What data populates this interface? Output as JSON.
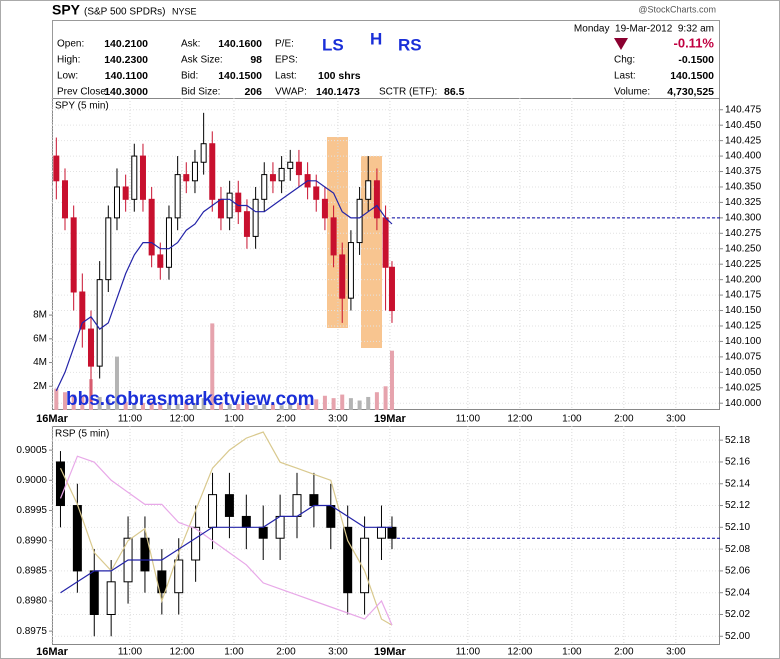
{
  "header": {
    "symbol": "SPY",
    "description": "(S&P 500 SPDRs)",
    "exchange": "NYSE",
    "source": "@StockCharts.com",
    "datetime": "Monday  19-Mar-2012  9:32 am",
    "change_percent": "-0.11%",
    "annotations": [
      "LS",
      "H",
      "RS"
    ],
    "stats": [
      {
        "label": "Open:",
        "value": "140.2100"
      },
      {
        "label": "High:",
        "value": "140.2300"
      },
      {
        "label": "Low:",
        "value": "140.1100"
      },
      {
        "label": "Prev Close:",
        "value": "140.3000"
      },
      {
        "label": "Ask:",
        "value": "140.1600"
      },
      {
        "label": "Ask Size:",
        "value": "98"
      },
      {
        "label": "Bid:",
        "value": "140.1500"
      },
      {
        "label": "Bid Size:",
        "value": "206"
      },
      {
        "label": "P/E:"
      },
      {
        "label": "EPS:"
      },
      {
        "label": "Last:",
        "value": "100 shrs"
      },
      {
        "label": "VWAP:",
        "value": "140.1473"
      },
      {
        "label": "SCTR (ETF):",
        "value": "86.5"
      },
      {
        "label": "Chg:",
        "value": "-0.1500"
      },
      {
        "label": "Last:",
        "value": "140.1500"
      },
      {
        "label": "Volume:",
        "value": "4,730,525"
      }
    ]
  },
  "chart_data": [
    {
      "type": "candlestick",
      "title": "SPY (5 min)",
      "grid": true,
      "up_color": "#ffffff",
      "down_color": "#c8102e",
      "outline_color": "#000000",
      "annotations": [
        "bbs.cobrasmarketview.com"
      ],
      "reference_line": 140.3,
      "reference_color": "#0000a0",
      "xlim": [
        0,
        12.85
      ],
      "xticks": [
        {
          "value": 0,
          "label": "16Mar"
        },
        {
          "value": 1.5,
          "label": "11:00"
        },
        {
          "value": 2.5,
          "label": "12:00"
        },
        {
          "value": 3.5,
          "label": "1:00"
        },
        {
          "value": 4.5,
          "label": "2:00"
        },
        {
          "value": 5.5,
          "label": "3:00"
        },
        {
          "value": 6.5,
          "label": "19Mar"
        },
        {
          "value": 8,
          "label": "11:00"
        },
        {
          "value": 9,
          "label": "12:00"
        },
        {
          "value": 10,
          "label": "1:00"
        },
        {
          "value": 11,
          "label": "2:00"
        },
        {
          "value": 12,
          "label": "3:00"
        }
      ],
      "ylim": [
        139.989,
        140.494
      ],
      "yticks": [
        {
          "value": 140,
          "label": "140.000"
        },
        140.025,
        {
          "value": 140.05,
          "label": "140.050"
        },
        140.075,
        {
          "value": 140.1,
          "label": "140.100"
        },
        140.125,
        {
          "value": 140.15,
          "label": "140.150"
        },
        140.175,
        {
          "value": 140.2,
          "label": "140.200"
        },
        140.225,
        {
          "value": 140.25,
          "label": "140.250"
        },
        140.275,
        {
          "value": 140.3,
          "label": "140.300"
        },
        140.325,
        {
          "value": 140.35,
          "label": "140.350"
        },
        140.375,
        {
          "value": 140.4,
          "label": "140.400"
        },
        140.425,
        {
          "value": 140.45,
          "label": "140.450"
        },
        140.475
      ],
      "y2lim": [
        0,
        26300000
      ],
      "y2ticks": [
        {
          "value": 2000000,
          "label": "2M"
        },
        {
          "value": 4000000,
          "label": "4M"
        },
        {
          "value": 6000000,
          "label": "6M"
        },
        {
          "value": 8000000,
          "label": "8M"
        }
      ],
      "x": [
        0.083,
        0.25,
        0.417,
        0.583,
        0.75,
        0.917,
        1.083,
        1.25,
        1.417,
        1.583,
        1.75,
        1.917,
        2.083,
        2.25,
        2.417,
        2.583,
        2.75,
        2.917,
        3.083,
        3.25,
        3.417,
        3.583,
        3.75,
        3.917,
        4.083,
        4.25,
        4.417,
        4.583,
        4.75,
        4.917,
        5.083,
        5.25,
        5.417,
        5.583,
        5.75,
        5.917,
        6.083,
        6.25,
        6.417,
        6.54
      ],
      "open": [
        140.4,
        140.36,
        140.3,
        140.18,
        140.12,
        140.06,
        140.2,
        140.3,
        140.35,
        140.33,
        140.4,
        140.33,
        140.24,
        140.22,
        140.3,
        140.37,
        140.36,
        140.39,
        140.42,
        140.33,
        140.3,
        140.34,
        140.31,
        140.27,
        140.33,
        140.37,
        140.36,
        140.38,
        140.39,
        140.37,
        140.35,
        140.33,
        140.3,
        140.24,
        140.17,
        140.26,
        140.33,
        140.36,
        140.3,
        140.22
      ],
      "high": [
        140.43,
        140.38,
        140.32,
        140.21,
        140.15,
        140.23,
        140.32,
        140.38,
        140.37,
        140.42,
        140.42,
        140.35,
        140.26,
        140.32,
        140.4,
        140.39,
        140.41,
        140.47,
        140.44,
        140.35,
        140.36,
        140.36,
        140.33,
        140.35,
        140.39,
        140.39,
        140.4,
        140.41,
        140.41,
        140.39,
        140.37,
        140.35,
        140.32,
        140.26,
        140.28,
        140.35,
        140.4,
        140.38,
        140.32,
        140.23
      ],
      "low": [
        140.33,
        140.28,
        140.15,
        140.09,
        140.0,
        140.04,
        140.18,
        140.28,
        140.31,
        140.31,
        140.31,
        140.22,
        140.2,
        140.2,
        140.28,
        140.34,
        140.34,
        140.37,
        140.31,
        140.28,
        140.28,
        140.29,
        140.25,
        140.25,
        140.31,
        140.34,
        140.34,
        140.36,
        140.35,
        140.33,
        140.31,
        140.28,
        140.22,
        140.13,
        140.15,
        140.24,
        140.31,
        140.28,
        140.15,
        140.13
      ],
      "close": [
        140.36,
        140.3,
        140.18,
        140.12,
        140.06,
        140.2,
        140.3,
        140.35,
        140.33,
        140.4,
        140.33,
        140.24,
        140.22,
        140.3,
        140.37,
        140.36,
        140.39,
        140.42,
        140.33,
        140.3,
        140.34,
        140.31,
        140.27,
        140.33,
        140.37,
        140.36,
        140.38,
        140.39,
        140.37,
        140.35,
        140.33,
        140.3,
        140.24,
        140.17,
        140.26,
        140.33,
        140.36,
        140.3,
        140.22,
        140.15
      ],
      "series": [
        {
          "type": "line",
          "color": "#2323a8",
          "values": [
            140.02,
            140.05,
            140.09,
            140.13,
            140.14,
            140.12,
            140.13,
            140.17,
            140.21,
            140.24,
            140.26,
            140.26,
            140.25,
            140.25,
            140.26,
            140.28,
            140.29,
            140.31,
            140.32,
            140.33,
            140.33,
            140.32,
            140.32,
            140.31,
            140.31,
            140.32,
            140.33,
            140.34,
            140.35,
            140.36,
            140.36,
            140.35,
            140.34,
            140.31,
            140.3,
            140.3,
            140.31,
            140.32,
            140.3,
            140.29
          ]
        },
        {
          "type": "bar",
          "axis": "y2",
          "up_color": "#b4b4b4",
          "down_color": "#e6a3ad",
          "values": [
            1800000,
            1500000,
            1300000,
            1200000,
            2600000,
            1100000,
            900000,
            4500000,
            700000,
            600000,
            600000,
            700000,
            500000,
            600000,
            500000,
            700000,
            600000,
            1000000,
            7300000,
            600000,
            500000,
            500000,
            600000,
            400000,
            500000,
            500000,
            400000,
            500000,
            600000,
            500000,
            900000,
            1200000,
            1000000,
            1300000,
            1000000,
            800000,
            1100000,
            1500000,
            2000000,
            5000000
          ]
        }
      ]
    },
    {
      "type": "candlestick",
      "title": "RSP (5 min)",
      "grid": true,
      "up_color": "#ffffff",
      "down_color": "#000000",
      "outline_color": "#000000",
      "reference_line": 52.09,
      "reference_color": "#0000a0",
      "xlim": [
        0,
        12.85
      ],
      "xticks": [
        {
          "value": 0,
          "label": "16Mar"
        },
        {
          "value": 1.5,
          "label": "11:00"
        },
        {
          "value": 2.5,
          "label": "12:00"
        },
        {
          "value": 3.5,
          "label": "1:00"
        },
        {
          "value": 4.5,
          "label": "2:00"
        },
        {
          "value": 5.5,
          "label": "3:00"
        },
        {
          "value": 6.5,
          "label": "19Mar"
        },
        {
          "value": 8,
          "label": "11:00"
        },
        {
          "value": 9,
          "label": "12:00"
        },
        {
          "value": 10,
          "label": "1:00"
        },
        {
          "value": 11,
          "label": "2:00"
        },
        {
          "value": 12,
          "label": "3:00"
        }
      ],
      "ylim": [
        51.992,
        52.193
      ],
      "yticks": [
        {
          "value": 52,
          "label": "52.00"
        },
        52.02,
        52.04,
        52.06,
        52.08,
        {
          "value": 52.1,
          "label": "52.10"
        },
        52.12,
        52.14,
        52.16,
        52.18
      ],
      "y2lim": [
        0.89727,
        0.9009
      ],
      "y2ticks": [
        0.8975,
        {
          "value": 0.898,
          "label": "0.8980"
        },
        0.8985,
        {
          "value": 0.899,
          "label": "0.8990"
        },
        0.8995,
        {
          "value": 0.9,
          "label": "0.9000"
        },
        0.9005
      ],
      "x": [
        0.163,
        0.488,
        0.813,
        1.138,
        1.463,
        1.788,
        2.113,
        2.438,
        2.763,
        3.088,
        3.413,
        3.738,
        4.063,
        4.388,
        4.713,
        5.038,
        5.363,
        5.688,
        6.013,
        6.338,
        6.54
      ],
      "open": [
        52.16,
        52.12,
        52.06,
        52.02,
        52.05,
        52.09,
        52.06,
        52.04,
        52.07,
        52.1,
        52.13,
        52.11,
        52.1,
        52.09,
        52.11,
        52.13,
        52.12,
        52.1,
        52.04,
        52.09,
        52.1
      ],
      "high": [
        52.17,
        52.14,
        52.08,
        52.07,
        52.11,
        52.11,
        52.08,
        52.09,
        52.12,
        52.15,
        52.15,
        52.13,
        52.12,
        52.13,
        52.15,
        52.15,
        52.14,
        52.12,
        52.11,
        52.12,
        52.11
      ],
      "low": [
        52.1,
        52.04,
        52.0,
        52.0,
        52.03,
        52.04,
        52.02,
        52.02,
        52.05,
        52.08,
        52.09,
        52.08,
        52.07,
        52.07,
        52.09,
        52.1,
        52.08,
        52.02,
        52.02,
        52.07,
        52.08
      ],
      "close": [
        52.12,
        52.06,
        52.02,
        52.05,
        52.09,
        52.06,
        52.04,
        52.07,
        52.1,
        52.13,
        52.11,
        52.1,
        52.09,
        52.11,
        52.13,
        52.12,
        52.1,
        52.04,
        52.09,
        52.1,
        52.09
      ],
      "series": [
        {
          "type": "line",
          "axis": "y2",
          "color": "#d9c98e",
          "values": [
            0.9002,
            0.8996,
            0.8988,
            0.8985,
            0.899,
            0.8992,
            0.898,
            0.8988,
            0.8995,
            0.9002,
            0.9005,
            0.9007,
            0.9008,
            0.9003,
            0.9002,
            0.9001,
            0.9,
            0.899,
            0.8985,
            0.8977,
            0.8976
          ]
        },
        {
          "type": "line",
          "axis": "y2",
          "color": "#e8a8e8",
          "values": [
            0.8997,
            0.9004,
            0.9003,
            0.9,
            0.8998,
            0.8996,
            0.8996,
            0.8993,
            0.8992,
            0.899,
            0.8988,
            0.8986,
            0.8983,
            0.8982,
            0.8981,
            0.898,
            0.8979,
            0.8978,
            0.8977,
            0.898,
            0.8976
          ]
        },
        {
          "type": "line",
          "color": "#2323a8",
          "values": [
            52.04,
            52.05,
            52.06,
            52.06,
            52.07,
            52.07,
            52.07,
            52.08,
            52.09,
            52.1,
            52.1,
            52.1,
            52.1,
            52.11,
            52.11,
            52.12,
            52.12,
            52.11,
            52.1,
            52.1,
            52.1
          ]
        }
      ]
    }
  ]
}
